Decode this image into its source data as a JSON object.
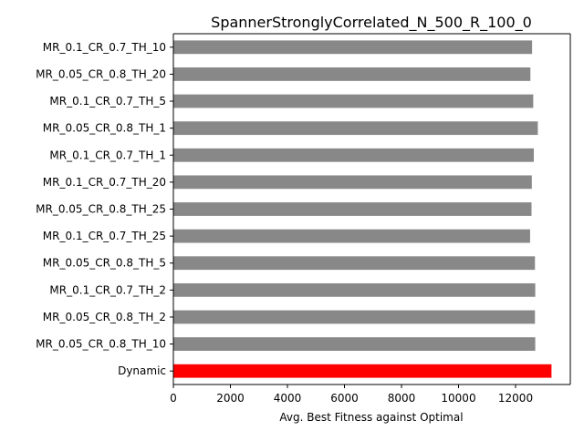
{
  "chart_data": {
    "type": "bar",
    "orientation": "horizontal",
    "title": "SpannerStronglyCorrelated_N_500_R_100_0",
    "xlabel": "Avg. Best Fitness against Optimal",
    "ylabel": "",
    "xlim": [
      0,
      14000
    ],
    "xticks": [
      0,
      2000,
      4000,
      6000,
      8000,
      10000,
      12000
    ],
    "categories": [
      "MR_0.1_CR_0.7_TH_10",
      "MR_0.05_CR_0.8_TH_20",
      "MR_0.1_CR_0.7_TH_5",
      "MR_0.05_CR_0.8_TH_1",
      "MR_0.1_CR_0.7_TH_1",
      "MR_0.1_CR_0.7_TH_20",
      "MR_0.05_CR_0.8_TH_25",
      "MR_0.1_CR_0.7_TH_25",
      "MR_0.05_CR_0.8_TH_5",
      "MR_0.1_CR_0.7_TH_2",
      "MR_0.05_CR_0.8_TH_2",
      "MR_0.05_CR_0.8_TH_10",
      "Dynamic"
    ],
    "values": [
      12580,
      12520,
      12620,
      12780,
      12640,
      12570,
      12560,
      12510,
      12680,
      12690,
      12680,
      12690,
      13260
    ],
    "bar_colors": [
      "#888888",
      "#888888",
      "#888888",
      "#888888",
      "#888888",
      "#888888",
      "#888888",
      "#888888",
      "#888888",
      "#888888",
      "#888888",
      "#888888",
      "#ff0000"
    ],
    "grid": false,
    "legend": "none"
  }
}
